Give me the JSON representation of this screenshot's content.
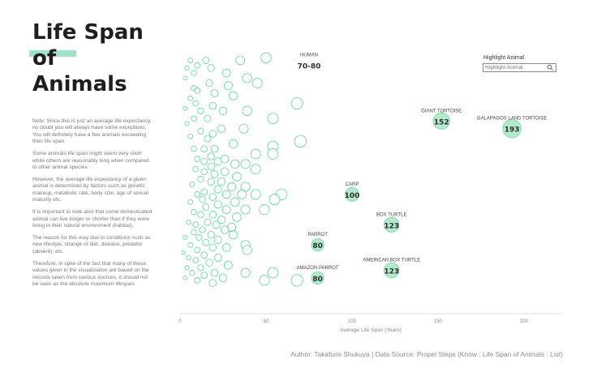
{
  "title": {
    "line1": "Life Span",
    "line2": "of",
    "line3": "Animals"
  },
  "notes": [
    "Note: Since this is just an average life expectancy, no doubt you will always have some exceptions.\nYou will definitely have a few animals exceeding their life span.",
    "Some animals life span might seem very short while others are reasonably long when compared to other animal species.",
    "However, the average life expectancy of a given animal is determined by factors such as genetic makeup, metabolic rate, body size, age of sexual maturity etc.",
    "It is important to note also that some domesticated animal can live longer or shorter than if they were living in their natural environment (habitat).",
    "The reason for this may due to conditions such as new lifestyle, change of diet, disease, predator (absent), etc.",
    "Therefore, in spite of the fact that many of these values given in the visualization are based on the records taken from various sources, it should not be seen as the absolute maximum lifespan."
  ],
  "highlight": {
    "label": "Highlight Animal",
    "placeholder": "Highlight Animal",
    "icon": "search-icon"
  },
  "footer": "Author: Takafumi Shukuya | Data Source: Propel Steps (Know : Life Span of Animals : List)",
  "colors": {
    "bubble_stroke": "#5fd49a",
    "highlight_fill": "#a6e6c6",
    "highlight_stroke": "#6fd3a2",
    "axis": "#dddddd"
  },
  "chart_data": {
    "type": "scatter",
    "xlabel": "Average Life Span (Years)",
    "xlim": [
      0,
      220
    ],
    "xticks": [
      0,
      50,
      100,
      150,
      200
    ],
    "annotated": [
      {
        "name": "HUMAN",
        "label": "70-80",
        "x": 75,
        "y": 0.94,
        "highlight": false
      },
      {
        "name": "GIANT TORTOISE",
        "label": "152",
        "x": 152,
        "y": 0.72,
        "highlight": true
      },
      {
        "name": "GALAPAGOS LAND TORTOISE",
        "label": "193",
        "x": 193,
        "y": 0.69,
        "highlight": true
      },
      {
        "name": "CARP",
        "label": "100",
        "x": 100,
        "y": 0.43,
        "highlight": true
      },
      {
        "name": "BOX TURTLE",
        "label": "123",
        "x": 123,
        "y": 0.31,
        "highlight": true
      },
      {
        "name": "PARROT",
        "label": "80",
        "x": 80,
        "y": 0.23,
        "highlight": true
      },
      {
        "name": "AMERICAN BOX TURTLE",
        "label": "123",
        "x": 123,
        "y": 0.13,
        "highlight": true
      },
      {
        "name": "AMAZON PARROT",
        "label": "80",
        "x": 80,
        "y": 0.1,
        "highlight": true
      }
    ],
    "points": [
      {
        "x": 50,
        "y": 0.97
      },
      {
        "x": 35,
        "y": 0.96
      },
      {
        "x": 15,
        "y": 0.96
      },
      {
        "x": 6,
        "y": 0.96
      },
      {
        "x": 10,
        "y": 0.94
      },
      {
        "x": 4,
        "y": 0.93
      },
      {
        "x": 18,
        "y": 0.93
      },
      {
        "x": 27,
        "y": 0.91
      },
      {
        "x": 8,
        "y": 0.91
      },
      {
        "x": 3,
        "y": 0.89
      },
      {
        "x": 39,
        "y": 0.89
      },
      {
        "x": 45,
        "y": 0.87
      },
      {
        "x": 17,
        "y": 0.87
      },
      {
        "x": 28,
        "y": 0.86
      },
      {
        "x": 8,
        "y": 0.85
      },
      {
        "x": 10,
        "y": 0.84
      },
      {
        "x": 20,
        "y": 0.83
      },
      {
        "x": 31,
        "y": 0.82
      },
      {
        "x": 6,
        "y": 0.81
      },
      {
        "x": 68,
        "y": 0.79
      },
      {
        "x": 9,
        "y": 0.79
      },
      {
        "x": 19,
        "y": 0.78
      },
      {
        "x": 3,
        "y": 0.77
      },
      {
        "x": 12,
        "y": 0.76
      },
      {
        "x": 25,
        "y": 0.76
      },
      {
        "x": 39,
        "y": 0.76
      },
      {
        "x": 54,
        "y": 0.73
      },
      {
        "x": 16,
        "y": 0.73
      },
      {
        "x": 8,
        "y": 0.73
      },
      {
        "x": 4,
        "y": 0.71
      },
      {
        "x": 24,
        "y": 0.69
      },
      {
        "x": 37,
        "y": 0.69
      },
      {
        "x": 12,
        "y": 0.68
      },
      {
        "x": 19,
        "y": 0.67
      },
      {
        "x": 6,
        "y": 0.66
      },
      {
        "x": 16,
        "y": 0.65
      },
      {
        "x": 70,
        "y": 0.64
      },
      {
        "x": 31,
        "y": 0.63
      },
      {
        "x": 54,
        "y": 0.62
      },
      {
        "x": 20,
        "y": 0.61
      },
      {
        "x": 14,
        "y": 0.61
      },
      {
        "x": 8,
        "y": 0.61
      },
      {
        "x": 44,
        "y": 0.59
      },
      {
        "x": 54,
        "y": 0.59
      },
      {
        "x": 18,
        "y": 0.58
      },
      {
        "x": 26,
        "y": 0.57
      },
      {
        "x": 10,
        "y": 0.57
      },
      {
        "x": 14,
        "y": 0.56
      },
      {
        "x": 22,
        "y": 0.56
      },
      {
        "x": 32,
        "y": 0.55
      },
      {
        "x": 38,
        "y": 0.55
      },
      {
        "x": 18,
        "y": 0.54
      },
      {
        "x": 44,
        "y": 0.53
      },
      {
        "x": 9,
        "y": 0.53
      },
      {
        "x": 26,
        "y": 0.52
      },
      {
        "x": 14,
        "y": 0.52
      },
      {
        "x": 20,
        "y": 0.51
      },
      {
        "x": 33,
        "y": 0.5
      },
      {
        "x": 12,
        "y": 0.49
      },
      {
        "x": 24,
        "y": 0.48
      },
      {
        "x": 18,
        "y": 0.48
      },
      {
        "x": 7,
        "y": 0.47
      },
      {
        "x": 30,
        "y": 0.46
      },
      {
        "x": 38,
        "y": 0.46
      },
      {
        "x": 22,
        "y": 0.45
      },
      {
        "x": 14,
        "y": 0.44
      },
      {
        "x": 10,
        "y": 0.43
      },
      {
        "x": 27,
        "y": 0.43
      },
      {
        "x": 36,
        "y": 0.43
      },
      {
        "x": 44,
        "y": 0.43
      },
      {
        "x": 59,
        "y": 0.43
      },
      {
        "x": 19,
        "y": 0.42
      },
      {
        "x": 55,
        "y": 0.41
      },
      {
        "x": 13,
        "y": 0.41
      },
      {
        "x": 32,
        "y": 0.4
      },
      {
        "x": 6,
        "y": 0.4
      },
      {
        "x": 22,
        "y": 0.39
      },
      {
        "x": 15,
        "y": 0.38
      },
      {
        "x": 27,
        "y": 0.37
      },
      {
        "x": 38,
        "y": 0.37
      },
      {
        "x": 49,
        "y": 0.37
      },
      {
        "x": 8,
        "y": 0.36
      },
      {
        "x": 19,
        "y": 0.35
      },
      {
        "x": 12,
        "y": 0.35
      },
      {
        "x": 33,
        "y": 0.34
      },
      {
        "x": 24,
        "y": 0.33
      },
      {
        "x": 5,
        "y": 0.32
      },
      {
        "x": 16,
        "y": 0.32
      },
      {
        "x": 9,
        "y": 0.31
      },
      {
        "x": 21,
        "y": 0.31
      },
      {
        "x": 30,
        "y": 0.3
      },
      {
        "x": 13,
        "y": 0.29
      },
      {
        "x": 26,
        "y": 0.29
      },
      {
        "x": 8,
        "y": 0.28
      },
      {
        "x": 18,
        "y": 0.27
      },
      {
        "x": 31,
        "y": 0.27
      },
      {
        "x": 3,
        "y": 0.26
      },
      {
        "x": 11,
        "y": 0.26
      },
      {
        "x": 22,
        "y": 0.25
      },
      {
        "x": 15,
        "y": 0.24
      },
      {
        "x": 6,
        "y": 0.23
      },
      {
        "x": 38,
        "y": 0.23
      },
      {
        "x": 19,
        "y": 0.22
      },
      {
        "x": 27,
        "y": 0.22
      },
      {
        "x": 39,
        "y": 0.21
      },
      {
        "x": 10,
        "y": 0.21
      },
      {
        "x": 2,
        "y": 0.2
      },
      {
        "x": 14,
        "y": 0.19
      },
      {
        "x": 22,
        "y": 0.18
      },
      {
        "x": 5,
        "y": 0.18
      },
      {
        "x": 9,
        "y": 0.17
      },
      {
        "x": 17,
        "y": 0.16
      },
      {
        "x": 28,
        "y": 0.15
      },
      {
        "x": 4,
        "y": 0.14
      },
      {
        "x": 12,
        "y": 0.14
      },
      {
        "x": 7,
        "y": 0.12
      },
      {
        "x": 20,
        "y": 0.12
      },
      {
        "x": 38,
        "y": 0.12
      },
      {
        "x": 54,
        "y": 0.12
      },
      {
        "x": 14,
        "y": 0.11
      },
      {
        "x": 3,
        "y": 0.1
      },
      {
        "x": 25,
        "y": 0.1
      },
      {
        "x": 10,
        "y": 0.09
      },
      {
        "x": 49,
        "y": 0.09
      },
      {
        "x": 68,
        "y": 0.09
      },
      {
        "x": 19,
        "y": 0.08
      }
    ]
  }
}
